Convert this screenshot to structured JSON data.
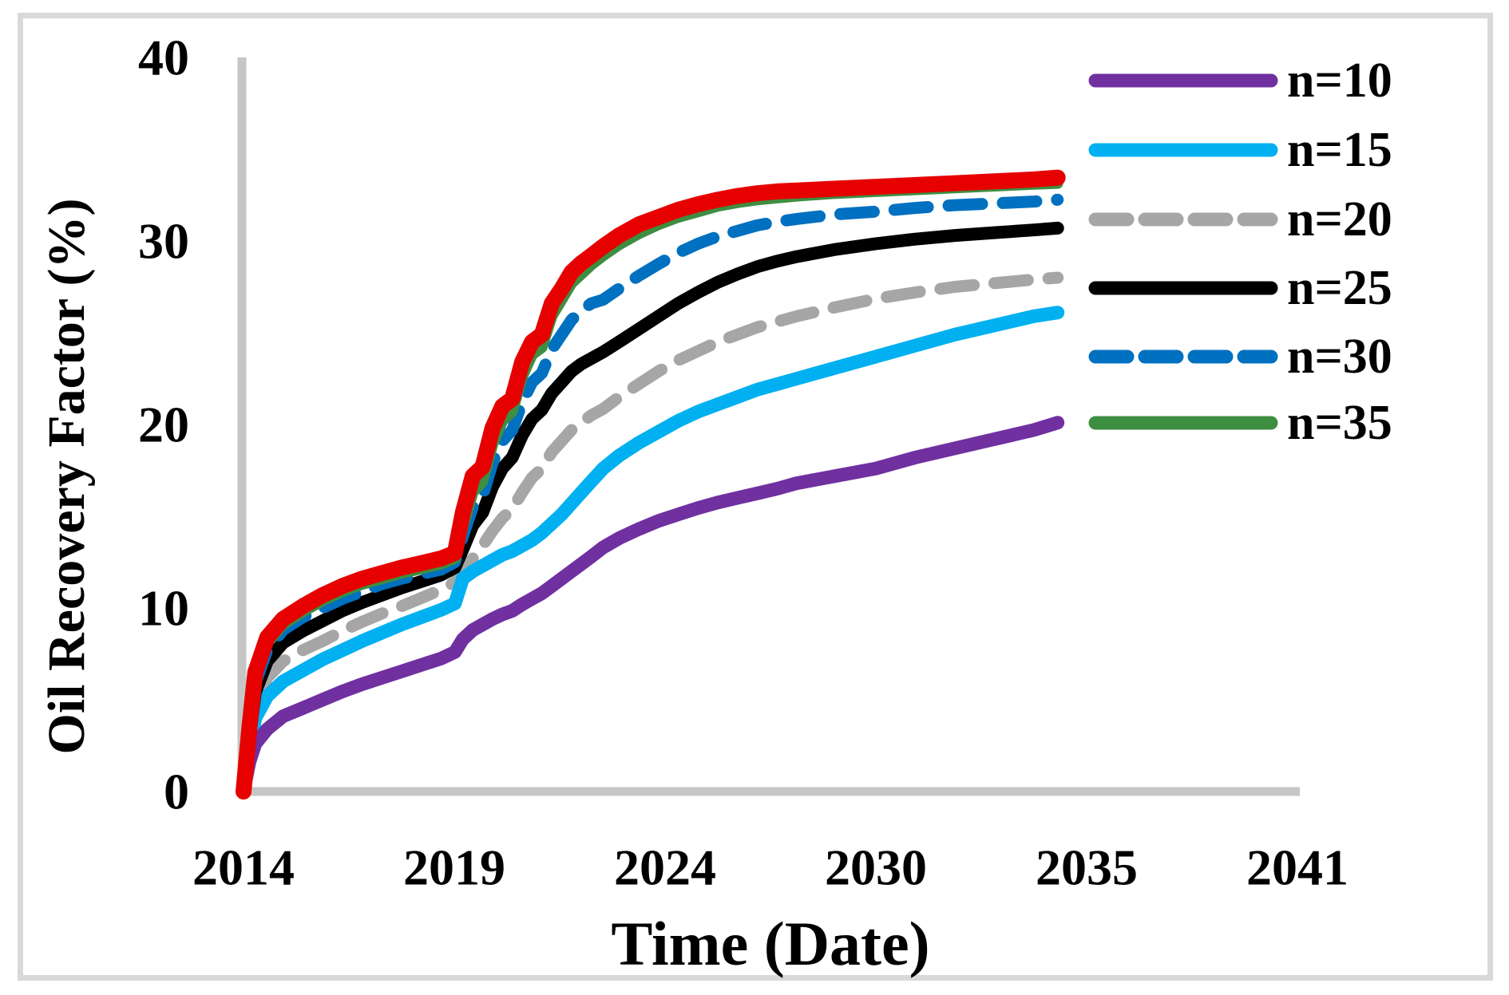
{
  "chart_data": {
    "type": "line",
    "title": "",
    "xlabel": "Time (Date)",
    "ylabel": "Oil Recovery Factor (%)",
    "x_tick_labels": [
      "2014",
      "2019",
      "2024",
      "2030",
      "2035",
      "2041"
    ],
    "y_ticks": [
      0,
      10,
      20,
      30,
      40
    ],
    "ylim": [
      0,
      40
    ],
    "xlim_years": [
      2014,
      2040.7
    ],
    "grid": "off",
    "legend_position": "upper right",
    "axis_color": "#c6c6c6",
    "x": [
      2014.0,
      2014.15,
      2014.3,
      2014.6,
      2015.0,
      2015.5,
      2016.0,
      2016.5,
      2017.0,
      2017.5,
      2018.0,
      2018.5,
      2019.0,
      2019.35,
      2019.55,
      2019.8,
      2020.05,
      2020.3,
      2020.55,
      2020.8,
      2021.05,
      2021.3,
      2021.55,
      2021.8,
      2022.05,
      2022.3,
      2022.55,
      2022.8,
      2023.1,
      2023.5,
      2024.0,
      2024.5,
      2025.0,
      2025.5,
      2026.0,
      2026.5,
      2027.0,
      2027.5,
      2028.0,
      2029.0,
      2030.0,
      2031.0,
      2032.0,
      2033.0,
      2034.0,
      2034.6
    ],
    "series": [
      {
        "name": "n=10",
        "color": "#7030a0",
        "style": "solid",
        "in_legend": true,
        "values": [
          0,
          1.6,
          2.6,
          3.4,
          4.1,
          4.55,
          5.0,
          5.45,
          5.85,
          6.2,
          6.55,
          6.9,
          7.25,
          7.6,
          8.3,
          8.8,
          9.1,
          9.4,
          9.65,
          9.85,
          10.2,
          10.5,
          10.8,
          11.2,
          11.6,
          12.0,
          12.4,
          12.8,
          13.3,
          13.8,
          14.3,
          14.75,
          15.1,
          15.45,
          15.75,
          16.0,
          16.25,
          16.5,
          16.8,
          17.2,
          17.6,
          18.2,
          18.7,
          19.2,
          19.7,
          20.1
        ]
      },
      {
        "name": "n=15",
        "color": "#00b0f0",
        "style": "solid",
        "in_legend": true,
        "values": [
          0,
          2.2,
          4.0,
          5.2,
          6.0,
          6.6,
          7.2,
          7.7,
          8.2,
          8.65,
          9.1,
          9.5,
          9.9,
          10.25,
          11.6,
          12.0,
          12.3,
          12.6,
          12.9,
          13.1,
          13.4,
          13.7,
          14.1,
          14.6,
          15.1,
          15.7,
          16.3,
          16.9,
          17.6,
          18.3,
          19.0,
          19.6,
          20.2,
          20.7,
          21.1,
          21.5,
          21.9,
          22.2,
          22.5,
          23.1,
          23.7,
          24.3,
          24.9,
          25.4,
          25.9,
          26.1
        ]
      },
      {
        "name": "n=20",
        "color": "#a6a6a6",
        "style": "dashed",
        "in_legend": true,
        "values": [
          0,
          2.6,
          4.8,
          6.2,
          7.1,
          7.7,
          8.2,
          8.75,
          9.25,
          9.7,
          10.1,
          10.55,
          11.0,
          11.4,
          12.0,
          12.7,
          13.4,
          14.2,
          14.9,
          15.4,
          16.3,
          17.1,
          17.6,
          18.5,
          19.1,
          19.7,
          20.1,
          20.5,
          20.85,
          21.5,
          22.2,
          22.9,
          23.5,
          24.0,
          24.5,
          24.9,
          25.3,
          25.6,
          25.9,
          26.4,
          26.85,
          27.2,
          27.5,
          27.7,
          27.9,
          28.0
        ]
      },
      {
        "name": "n=25",
        "color": "#000000",
        "style": "solid",
        "in_legend": true,
        "values": [
          0,
          2.9,
          5.4,
          7.1,
          8.1,
          8.75,
          9.3,
          9.85,
          10.3,
          10.7,
          11.1,
          11.45,
          11.8,
          12.2,
          13.2,
          14.5,
          15.2,
          16.6,
          17.6,
          18.2,
          19.4,
          20.3,
          20.8,
          21.7,
          22.3,
          22.9,
          23.3,
          23.6,
          23.95,
          24.5,
          25.2,
          25.9,
          26.6,
          27.2,
          27.75,
          28.2,
          28.6,
          28.9,
          29.15,
          29.55,
          29.85,
          30.1,
          30.3,
          30.45,
          30.6,
          30.7
        ]
      },
      {
        "name": "n=30",
        "color": "#0070c0",
        "style": "dashed",
        "in_legend": true,
        "values": [
          0,
          3.1,
          5.9,
          7.7,
          8.8,
          9.5,
          10.0,
          10.5,
          10.9,
          11.3,
          11.6,
          11.85,
          12.1,
          12.5,
          13.9,
          15.5,
          16.1,
          17.9,
          19.1,
          19.7,
          21.2,
          22.3,
          22.8,
          24.1,
          24.9,
          25.7,
          26.2,
          26.6,
          26.8,
          27.4,
          28.1,
          28.75,
          29.35,
          29.85,
          30.25,
          30.55,
          30.85,
          31.05,
          31.2,
          31.45,
          31.6,
          31.8,
          31.95,
          32.05,
          32.15,
          32.25
        ]
      },
      {
        "name": "n=35",
        "color": "#3e8e41",
        "style": "solid",
        "in_legend": true,
        "values": [
          0,
          3.3,
          6.2,
          8.1,
          9.1,
          9.8,
          10.4,
          10.9,
          11.3,
          11.6,
          11.9,
          12.15,
          12.4,
          12.7,
          14.4,
          16.3,
          16.9,
          18.9,
          20.2,
          20.7,
          22.6,
          23.8,
          24.2,
          25.9,
          26.8,
          27.7,
          28.2,
          28.7,
          29.2,
          29.8,
          30.4,
          30.9,
          31.3,
          31.6,
          31.9,
          32.1,
          32.25,
          32.35,
          32.45,
          32.6,
          32.7,
          32.8,
          32.9,
          33.0,
          33.1,
          33.15
        ]
      },
      {
        "name": "",
        "color": "#e60000",
        "style": "solid",
        "in_legend": false,
        "values": [
          0,
          3.5,
          6.5,
          8.4,
          9.4,
          10.1,
          10.7,
          11.2,
          11.6,
          11.9,
          12.2,
          12.45,
          12.7,
          13.0,
          15.2,
          17.2,
          17.7,
          19.8,
          21.0,
          21.4,
          23.4,
          24.5,
          24.9,
          26.6,
          27.4,
          28.3,
          28.8,
          29.2,
          29.7,
          30.3,
          30.9,
          31.3,
          31.7,
          32.0,
          32.25,
          32.45,
          32.6,
          32.7,
          32.75,
          32.85,
          32.95,
          33.05,
          33.15,
          33.25,
          33.35,
          33.45
        ]
      }
    ]
  }
}
